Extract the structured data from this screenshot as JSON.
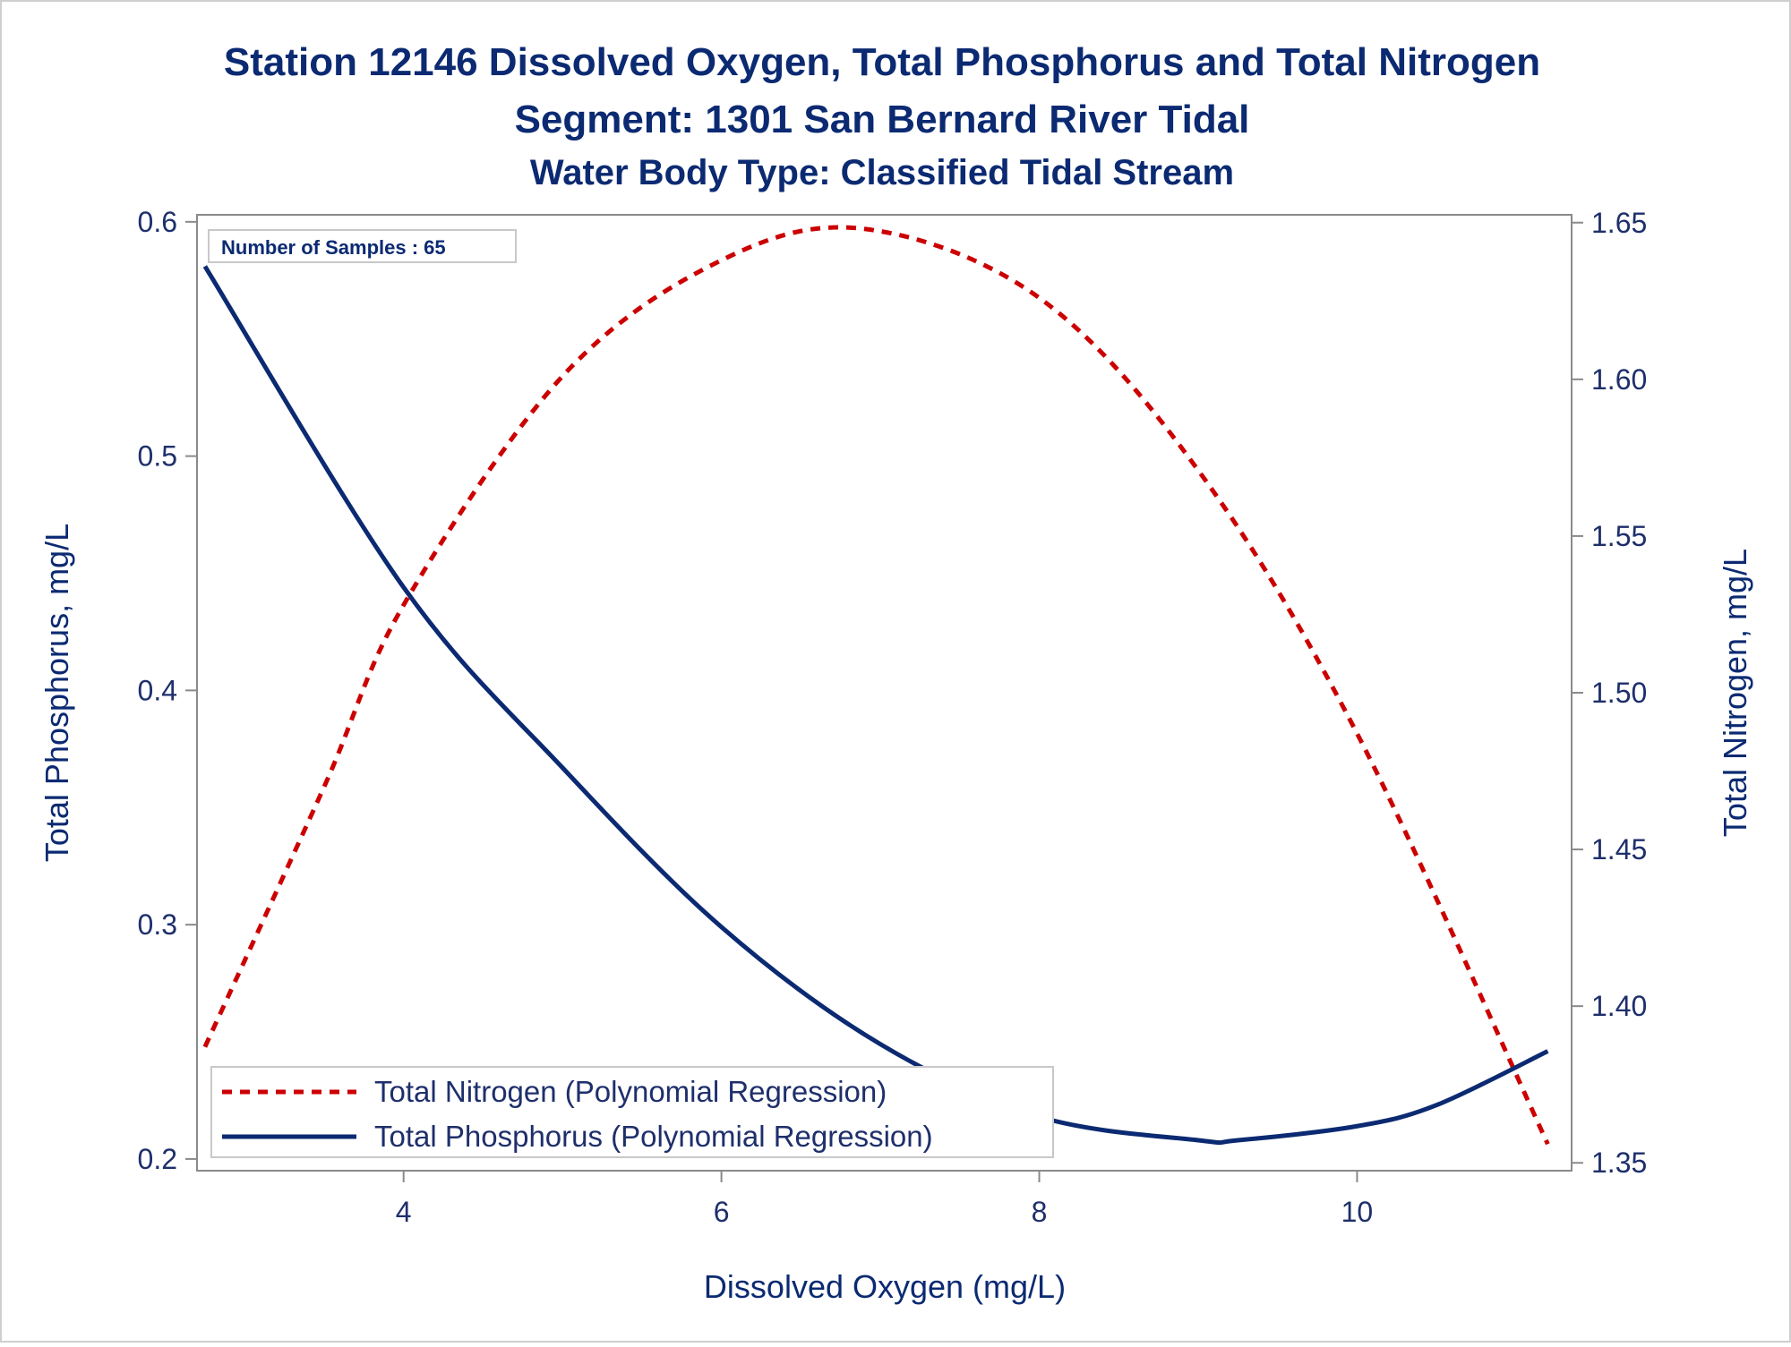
{
  "chart_data": {
    "type": "line",
    "title": "Station 12146  Dissolved Oxygen, Total Phosphorus and Total Nitrogen",
    "subtitle": "Segment: 1301  San Bernard River Tidal",
    "subtitle2": "Water Body Type: Classified Tidal Stream",
    "xlabel": "Dissolved Oxygen (mg/L)",
    "ylabel": "Total Phosphorus, mg/L",
    "y2label": "Total Nitrogen, mg/L",
    "xlim": [
      2.7,
      11.35
    ],
    "ylim": [
      0.195,
      0.603
    ],
    "y2lim": [
      1.3475,
      1.6525
    ],
    "xticks": [
      "4",
      "6",
      "8",
      "10"
    ],
    "xtick_values": [
      4,
      6,
      8,
      10
    ],
    "yticks": [
      "0.2",
      "0.3",
      "0.4",
      "0.5",
      "0.6"
    ],
    "ytick_values": [
      0.2,
      0.3,
      0.4,
      0.5,
      0.6
    ],
    "y2ticks": [
      "1.35",
      "1.40",
      "1.45",
      "1.50",
      "1.55",
      "1.60",
      "1.65"
    ],
    "y2tick_values": [
      1.35,
      1.4,
      1.45,
      1.5,
      1.55,
      1.6,
      1.65
    ],
    "inset": "Number of Samples : 65",
    "legend_placement": "bottom-left",
    "grid": false,
    "series": [
      {
        "name": "Total Nitrogen (Polynomial Regression)",
        "axis": "right",
        "style": "dashed",
        "color": "#cc0000",
        "x": [
          2.75,
          3.5,
          4.0,
          5.0,
          6.0,
          6.9,
          8.0,
          9.0,
          10.0,
          11.2
        ],
        "y": [
          1.387,
          1.47,
          1.528,
          1.601,
          1.638,
          1.648,
          1.626,
          1.571,
          1.487,
          1.356
        ]
      },
      {
        "name": "Total Phosphorus (Polynomial Regression)",
        "axis": "left",
        "style": "solid",
        "color": "#0b2a72",
        "x": [
          2.75,
          4.0,
          5.0,
          6.0,
          7.0,
          8.0,
          9.0,
          9.25,
          10.0,
          10.5,
          11.2
        ],
        "y": [
          0.581,
          0.444,
          0.367,
          0.299,
          0.249,
          0.218,
          0.208,
          0.208,
          0.214,
          0.223,
          0.246
        ]
      }
    ]
  },
  "colors": {
    "nitrogen": "#cc0000",
    "phosphorus": "#0b2a72",
    "frame": "#8a8a8a",
    "text": "#0b2a72"
  }
}
